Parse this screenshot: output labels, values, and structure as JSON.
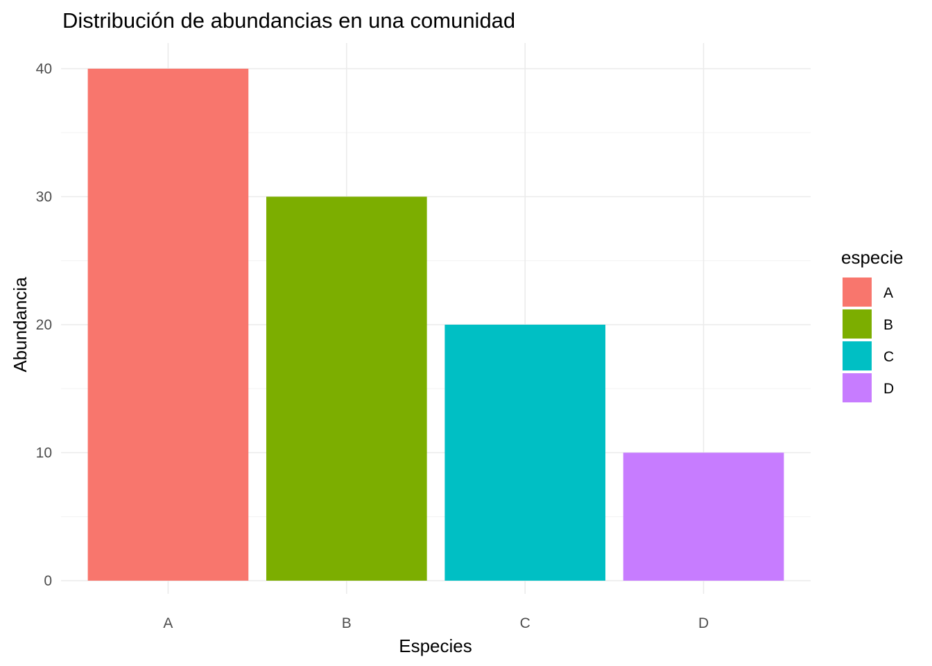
{
  "chart_data": {
    "type": "bar",
    "title": "Distribución de abundancias en una comunidad",
    "xlabel": "Especies",
    "ylabel": "Abundancia",
    "categories": [
      "A",
      "B",
      "C",
      "D"
    ],
    "values": [
      40,
      30,
      20,
      10
    ],
    "colors": [
      "#F8766D",
      "#7CAE00",
      "#00BFC4",
      "#C77CFF"
    ],
    "ylim": [
      0,
      42
    ],
    "yticks": [
      0,
      10,
      20,
      30,
      40
    ],
    "grid": true,
    "legend": {
      "title": "especie",
      "position": "right",
      "entries": [
        "A",
        "B",
        "C",
        "D"
      ]
    }
  }
}
